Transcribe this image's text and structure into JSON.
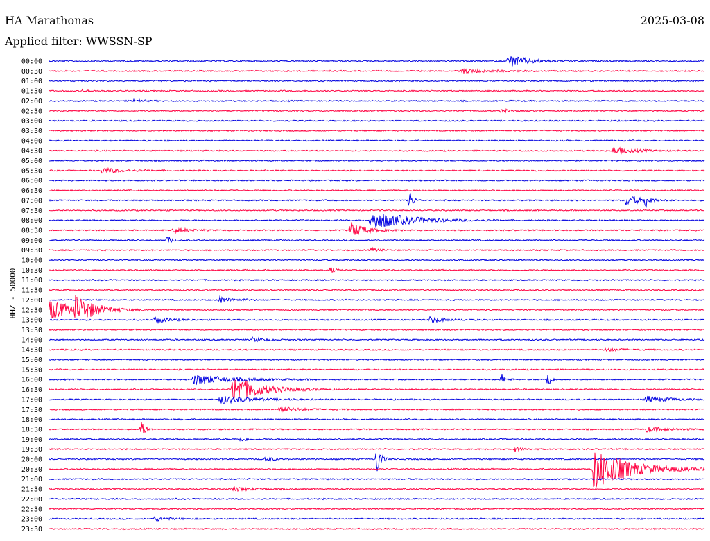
{
  "header": {
    "title": "HA Marathonas",
    "date": "2025-03-08",
    "filter": "Applied filter: WWSSN-SP"
  },
  "channel_label": "HHZ - 50000",
  "colors": {
    "even": "#0000e0",
    "odd": "#ff0040"
  },
  "chart_data": {
    "type": "line",
    "title": "HA Marathonas",
    "ylabel": "HHZ - 50000",
    "tick_labels": [
      "00:00",
      "00:30",
      "01:00",
      "01:30",
      "02:00",
      "02:30",
      "03:00",
      "03:30",
      "04:00",
      "04:30",
      "05:00",
      "05:30",
      "06:00",
      "06:30",
      "07:00",
      "07:30",
      "08:00",
      "08:30",
      "09:00",
      "09:30",
      "10:00",
      "10:30",
      "11:00",
      "11:30",
      "12:00",
      "12:30",
      "13:00",
      "13:30",
      "14:00",
      "14:30",
      "15:00",
      "15:30",
      "16:00",
      "16:30",
      "17:00",
      "17:30",
      "18:00",
      "18:30",
      "19:00",
      "19:30",
      "20:00",
      "20:30",
      "21:00",
      "21:30",
      "22:00",
      "22:30",
      "23:00",
      "23:30"
    ],
    "x_range_minutes": [
      0,
      30
    ],
    "events": [
      {
        "row": 0,
        "t": 0.7,
        "amp": 9,
        "dur": 0.03
      },
      {
        "row": 1,
        "t": 0.63,
        "amp": 3,
        "dur": 0.04
      },
      {
        "row": 3,
        "t": 0.05,
        "amp": 2,
        "dur": 0.01
      },
      {
        "row": 4,
        "t": 0.13,
        "amp": 3,
        "dur": 0.01
      },
      {
        "row": 5,
        "t": 0.69,
        "amp": 3,
        "dur": 0.01
      },
      {
        "row": 9,
        "t": 0.86,
        "amp": 5,
        "dur": 0.03
      },
      {
        "row": 11,
        "t": 0.08,
        "amp": 4,
        "dur": 0.03
      },
      {
        "row": 14,
        "t": 0.55,
        "amp": 14,
        "dur": 0.005
      },
      {
        "row": 14,
        "t": 0.88,
        "amp": 8,
        "dur": 0.02
      },
      {
        "row": 14,
        "t": 0.91,
        "amp": 12,
        "dur": 0.005
      },
      {
        "row": 16,
        "t": 0.49,
        "amp": 15,
        "dur": 0.05
      },
      {
        "row": 17,
        "t": 0.46,
        "amp": 12,
        "dur": 0.02
      },
      {
        "row": 17,
        "t": 0.19,
        "amp": 4,
        "dur": 0.02
      },
      {
        "row": 18,
        "t": 0.18,
        "amp": 8,
        "dur": 0.005
      },
      {
        "row": 19,
        "t": 0.49,
        "amp": 4,
        "dur": 0.01
      },
      {
        "row": 21,
        "t": 0.43,
        "amp": 5,
        "dur": 0.005
      },
      {
        "row": 24,
        "t": 0.26,
        "amp": 5,
        "dur": 0.02
      },
      {
        "row": 25,
        "t": 0.0,
        "amp": 16,
        "dur": 0.03
      },
      {
        "row": 25,
        "t": 0.04,
        "amp": 18,
        "dur": 0.03
      },
      {
        "row": 26,
        "t": 0.16,
        "amp": 5,
        "dur": 0.02
      },
      {
        "row": 26,
        "t": 0.58,
        "amp": 5,
        "dur": 0.02
      },
      {
        "row": 28,
        "t": 0.31,
        "amp": 3,
        "dur": 0.02
      },
      {
        "row": 29,
        "t": 0.85,
        "amp": 3,
        "dur": 0.02
      },
      {
        "row": 32,
        "t": 0.22,
        "amp": 8,
        "dur": 0.05
      },
      {
        "row": 32,
        "t": 0.69,
        "amp": 10,
        "dur": 0.005
      },
      {
        "row": 32,
        "t": 0.76,
        "amp": 20,
        "dur": 0.004
      },
      {
        "row": 33,
        "t": 0.28,
        "amp": 20,
        "dur": 0.04
      },
      {
        "row": 34,
        "t": 0.26,
        "amp": 6,
        "dur": 0.04
      },
      {
        "row": 34,
        "t": 0.91,
        "amp": 5,
        "dur": 0.03
      },
      {
        "row": 35,
        "t": 0.35,
        "amp": 4,
        "dur": 0.03
      },
      {
        "row": 37,
        "t": 0.14,
        "amp": 16,
        "dur": 0.005
      },
      {
        "row": 37,
        "t": 0.91,
        "amp": 4,
        "dur": 0.03
      },
      {
        "row": 38,
        "t": 0.29,
        "amp": 4,
        "dur": 0.01
      },
      {
        "row": 39,
        "t": 0.71,
        "amp": 4,
        "dur": 0.01
      },
      {
        "row": 40,
        "t": 0.33,
        "amp": 4,
        "dur": 0.01
      },
      {
        "row": 40,
        "t": 0.5,
        "amp": 28,
        "dur": 0.005
      },
      {
        "row": 41,
        "t": 0.83,
        "amp": 32,
        "dur": 0.05
      },
      {
        "row": 43,
        "t": 0.28,
        "amp": 3,
        "dur": 0.03
      },
      {
        "row": 46,
        "t": 0.16,
        "amp": 3,
        "dur": 0.02
      }
    ]
  }
}
